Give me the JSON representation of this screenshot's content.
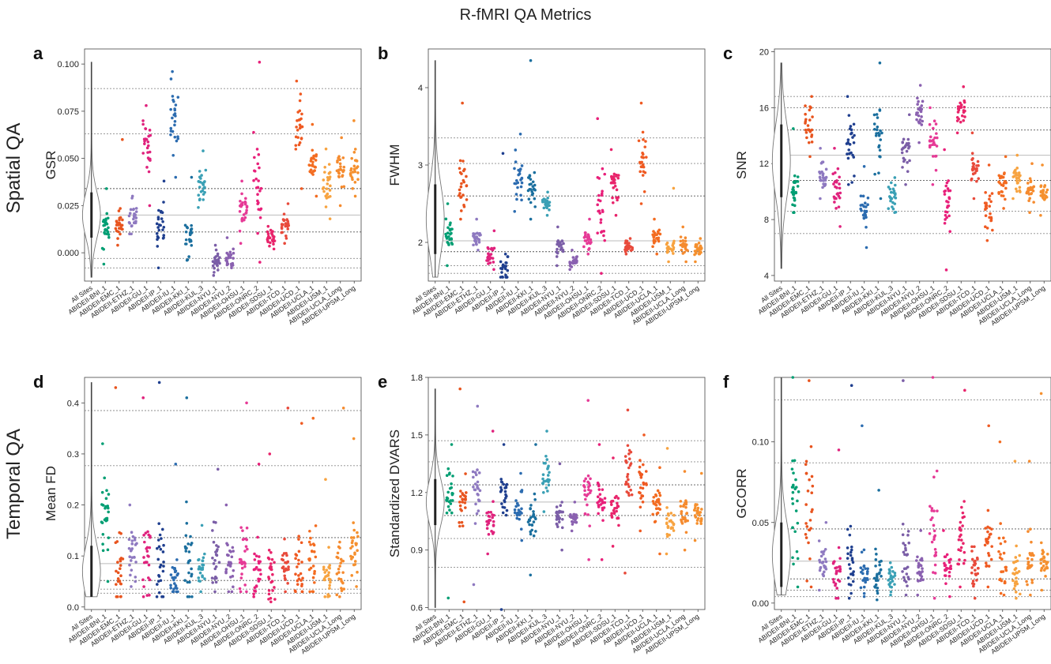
{
  "figure_title": "R-fMRI QA Metrics",
  "row_labels": [
    "Spatial QA",
    "Temporal QA"
  ],
  "categories": [
    "All Sites",
    "ABIDEII-BNI_1",
    "ABIDEII-EMC_1",
    "ABIDEII-ETHZ_1",
    "ABIDEII-GU_1",
    "ABIDEII-IP_1",
    "ABIDEII-IU_1",
    "ABIDEII-KKI_1",
    "ABIDEII-KUL_3",
    "ABIDEII-NYU_1",
    "ABIDEII-NYU_2",
    "ABIDEII-OHSU_1",
    "ABIDEII-ONRC_2",
    "ABIDEII-SDSU_1",
    "ABIDEII-TCD_1",
    "ABIDEII-UCD_1",
    "ABIDEII-UCLA_1",
    "ABIDEII-USM_1",
    "ABIDEII-UCLA_Long",
    "ABIDEII-UPSM_Long"
  ],
  "colors": [
    "#7f7f7f",
    "#009e73",
    "#e8541e",
    "#8e79c0",
    "#e0227d",
    "#1f3f8f",
    "#2c6cb0",
    "#1b6f9e",
    "#3aa0b5",
    "#7b5ea7",
    "#8a61b0",
    "#e63a96",
    "#e8207a",
    "#e8246b",
    "#e84a3b",
    "#ef5a22",
    "#f36c21",
    "#f7a340",
    "#f58b2f",
    "#f5902e"
  ],
  "chart_data": [
    {
      "type": "scatter",
      "panel": "a",
      "ylabel": "GSR",
      "ylim": [
        -0.015,
        0.108
      ],
      "yticks": [
        "0.000",
        "0.025",
        "0.050",
        "0.075",
        "0.100"
      ],
      "series": [
        {
          "center": 0.02,
          "spread": 0.012,
          "min": -0.013,
          "max": 0.101
        },
        {
          "center": 0.013,
          "spread": 0.009,
          "min": -0.006,
          "max": 0.034
        },
        {
          "center": 0.014,
          "spread": 0.006,
          "min": 0.004,
          "max": 0.06
        },
        {
          "center": 0.02,
          "spread": 0.007,
          "min": 0.01,
          "max": 0.03
        },
        {
          "center": 0.055,
          "spread": 0.012,
          "min": 0.025,
          "max": 0.078
        },
        {
          "center": 0.016,
          "spread": 0.01,
          "min": -0.008,
          "max": 0.038
        },
        {
          "center": 0.07,
          "spread": 0.015,
          "min": 0.04,
          "max": 0.096
        },
        {
          "center": 0.01,
          "spread": 0.008,
          "min": -0.004,
          "max": 0.04
        },
        {
          "center": 0.036,
          "spread": 0.007,
          "min": 0.024,
          "max": 0.054
        },
        {
          "center": -0.005,
          "spread": 0.004,
          "min": -0.012,
          "max": 0.004
        },
        {
          "center": -0.003,
          "spread": 0.004,
          "min": -0.008,
          "max": 0.008
        },
        {
          "center": 0.022,
          "spread": 0.01,
          "min": 0.005,
          "max": 0.038
        },
        {
          "center": 0.04,
          "spread": 0.022,
          "min": -0.005,
          "max": 0.101
        },
        {
          "center": 0.007,
          "spread": 0.004,
          "min": 0.002,
          "max": 0.014
        },
        {
          "center": 0.014,
          "spread": 0.005,
          "min": 0.005,
          "max": 0.026
        },
        {
          "center": 0.065,
          "spread": 0.013,
          "min": 0.034,
          "max": 0.091
        },
        {
          "center": 0.046,
          "spread": 0.007,
          "min": 0.03,
          "max": 0.068
        },
        {
          "center": 0.036,
          "spread": 0.009,
          "min": 0.018,
          "max": 0.055
        },
        {
          "center": 0.044,
          "spread": 0.008,
          "min": 0.025,
          "max": 0.061
        },
        {
          "center": 0.045,
          "spread": 0.008,
          "min": 0.03,
          "max": 0.07
        }
      ],
      "hlines": [
        0.087,
        0.063,
        0.034,
        0.02,
        0.011,
        -0.003,
        -0.008
      ]
    },
    {
      "type": "scatter",
      "panel": "b",
      "ylabel": "FWHM",
      "ylim": [
        1.5,
        4.5
      ],
      "yticks": [
        "2",
        "3",
        "4"
      ],
      "series": [
        {
          "center": 2.3,
          "spread": 0.45,
          "min": 1.55,
          "max": 4.35
        },
        {
          "center": 2.1,
          "spread": 0.18,
          "min": 1.7,
          "max": 2.5
        },
        {
          "center": 2.7,
          "spread": 0.25,
          "min": 2.3,
          "max": 3.8
        },
        {
          "center": 2.05,
          "spread": 0.1,
          "min": 1.9,
          "max": 2.3
        },
        {
          "center": 1.85,
          "spread": 0.12,
          "min": 1.65,
          "max": 2.15
        },
        {
          "center": 1.65,
          "spread": 0.15,
          "min": 1.55,
          "max": 3.15
        },
        {
          "center": 2.85,
          "spread": 0.22,
          "min": 2.4,
          "max": 3.4
        },
        {
          "center": 2.75,
          "spread": 0.2,
          "min": 2.3,
          "max": 4.35
        },
        {
          "center": 2.5,
          "spread": 0.08,
          "min": 2.35,
          "max": 2.65
        },
        {
          "center": 1.95,
          "spread": 0.12,
          "min": 1.7,
          "max": 2.2
        },
        {
          "center": 1.75,
          "spread": 0.06,
          "min": 1.65,
          "max": 1.9
        },
        {
          "center": 2.05,
          "spread": 0.1,
          "min": 1.85,
          "max": 2.3
        },
        {
          "center": 2.4,
          "spread": 0.45,
          "min": 1.6,
          "max": 3.6
        },
        {
          "center": 2.75,
          "spread": 0.18,
          "min": 2.35,
          "max": 3.2
        },
        {
          "center": 1.95,
          "spread": 0.06,
          "min": 1.85,
          "max": 2.05
        },
        {
          "center": 3.05,
          "spread": 0.3,
          "min": 2.5,
          "max": 3.8
        },
        {
          "center": 2.05,
          "spread": 0.1,
          "min": 1.85,
          "max": 2.3
        },
        {
          "center": 1.95,
          "spread": 0.1,
          "min": 1.75,
          "max": 2.7
        },
        {
          "center": 1.95,
          "spread": 0.1,
          "min": 1.75,
          "max": 2.2
        },
        {
          "center": 1.9,
          "spread": 0.08,
          "min": 1.75,
          "max": 2.05
        }
      ],
      "hlines": [
        3.35,
        3.02,
        2.6,
        2.02,
        1.88,
        1.7,
        1.6
      ]
    },
    {
      "type": "scatter",
      "panel": "c",
      "ylabel": "SNR",
      "ylim": [
        3.6,
        20.2
      ],
      "yticks": [
        "4",
        "8",
        "12",
        "16",
        "20"
      ],
      "series": [
        {
          "center": 12.2,
          "spread": 2.6,
          "min": 4.5,
          "max": 19.2
        },
        {
          "center": 10.4,
          "spread": 1.1,
          "min": 8.5,
          "max": 14.5
        },
        {
          "center": 14.8,
          "spread": 1.0,
          "min": 12.5,
          "max": 16.8
        },
        {
          "center": 11.2,
          "spread": 0.8,
          "min": 9.5,
          "max": 13.1
        },
        {
          "center": 10.2,
          "spread": 1.3,
          "min": 7.5,
          "max": 13.1
        },
        {
          "center": 13.5,
          "spread": 1.7,
          "min": 10.5,
          "max": 16.8
        },
        {
          "center": 8.5,
          "spread": 1.3,
          "min": 6.0,
          "max": 11.8
        },
        {
          "center": 13.8,
          "spread": 2.0,
          "min": 9.5,
          "max": 19.2
        },
        {
          "center": 9.6,
          "spread": 0.7,
          "min": 8.5,
          "max": 11.0
        },
        {
          "center": 13.0,
          "spread": 1.2,
          "min": 10.5,
          "max": 15.5
        },
        {
          "center": 15.5,
          "spread": 1.0,
          "min": 13.5,
          "max": 17.6
        },
        {
          "center": 13.5,
          "spread": 1.5,
          "min": 10.5,
          "max": 16.0
        },
        {
          "center": 9.5,
          "spread": 2.0,
          "min": 4.4,
          "max": 13.0
        },
        {
          "center": 15.8,
          "spread": 0.7,
          "min": 14.2,
          "max": 17.5
        },
        {
          "center": 11.6,
          "spread": 1.0,
          "min": 9.5,
          "max": 14.2
        },
        {
          "center": 8.5,
          "spread": 1.3,
          "min": 6.5,
          "max": 11.9
        },
        {
          "center": 10.6,
          "spread": 0.9,
          "min": 8.8,
          "max": 12.5
        },
        {
          "center": 10.9,
          "spread": 0.8,
          "min": 9.5,
          "max": 12.6
        },
        {
          "center": 10.1,
          "spread": 0.7,
          "min": 8.5,
          "max": 12.0
        },
        {
          "center": 9.9,
          "spread": 0.7,
          "min": 8.3,
          "max": 11.9
        }
      ],
      "hlines": [
        16.8,
        16.0,
        14.4,
        12.6,
        10.8,
        8.6,
        7.0
      ]
    },
    {
      "type": "scatter",
      "panel": "d",
      "ylabel": "Mean FD",
      "ylim": [
        -0.005,
        0.45
      ],
      "yticks": [
        "0.0",
        "0.1",
        "0.2",
        "0.3",
        "0.4"
      ],
      "series": [
        {
          "center": 0.07,
          "spread": 0.05,
          "min": 0.02,
          "max": 0.44
        },
        {
          "center": 0.17,
          "spread": 0.07,
          "min": 0.05,
          "max": 0.32
        },
        {
          "center": 0.09,
          "spread": 0.08,
          "min": 0.02,
          "max": 0.43
        },
        {
          "center": 0.11,
          "spread": 0.05,
          "min": 0.04,
          "max": 0.2
        },
        {
          "center": 0.09,
          "spread": 0.07,
          "min": 0.02,
          "max": 0.41
        },
        {
          "center": 0.08,
          "spread": 0.07,
          "min": 0.02,
          "max": 0.44
        },
        {
          "center": 0.06,
          "spread": 0.03,
          "min": 0.03,
          "max": 0.28
        },
        {
          "center": 0.1,
          "spread": 0.08,
          "min": 0.02,
          "max": 0.41
        },
        {
          "center": 0.07,
          "spread": 0.03,
          "min": 0.03,
          "max": 0.16
        },
        {
          "center": 0.1,
          "spread": 0.06,
          "min": 0.03,
          "max": 0.27
        },
        {
          "center": 0.09,
          "spread": 0.04,
          "min": 0.03,
          "max": 0.2
        },
        {
          "center": 0.1,
          "spread": 0.07,
          "min": 0.03,
          "max": 0.4
        },
        {
          "center": 0.07,
          "spread": 0.05,
          "min": 0.02,
          "max": 0.28
        },
        {
          "center": 0.06,
          "spread": 0.04,
          "min": 0.01,
          "max": 0.3
        },
        {
          "center": 0.08,
          "spread": 0.04,
          "min": 0.03,
          "max": 0.39
        },
        {
          "center": 0.08,
          "spread": 0.05,
          "min": 0.03,
          "max": 0.36
        },
        {
          "center": 0.09,
          "spread": 0.06,
          "min": 0.03,
          "max": 0.37
        },
        {
          "center": 0.06,
          "spread": 0.04,
          "min": 0.02,
          "max": 0.25
        },
        {
          "center": 0.07,
          "spread": 0.05,
          "min": 0.02,
          "max": 0.39
        },
        {
          "center": 0.11,
          "spread": 0.05,
          "min": 0.04,
          "max": 0.33
        }
      ],
      "hlines": [
        0.385,
        0.277,
        0.136,
        0.085,
        0.052,
        0.035,
        0.027
      ]
    },
    {
      "type": "scatter",
      "panel": "e",
      "ylabel": "Standardized DVARS",
      "ylim": [
        0.59,
        1.8
      ],
      "yticks": [
        "0.6",
        "0.9",
        "1.2",
        "1.5",
        "1.8"
      ],
      "series": [
        {
          "center": 1.15,
          "spread": 0.12,
          "min": 0.6,
          "max": 1.74
        },
        {
          "center": 1.2,
          "spread": 0.09,
          "min": 0.65,
          "max": 1.45
        },
        {
          "center": 1.15,
          "spread": 0.12,
          "min": 0.63,
          "max": 1.74
        },
        {
          "center": 1.2,
          "spread": 0.11,
          "min": 0.72,
          "max": 1.65
        },
        {
          "center": 1.05,
          "spread": 0.07,
          "min": 0.88,
          "max": 1.52
        },
        {
          "center": 1.2,
          "spread": 0.1,
          "min": 0.59,
          "max": 1.45
        },
        {
          "center": 1.12,
          "spread": 0.07,
          "min": 0.95,
          "max": 1.3
        },
        {
          "center": 1.05,
          "spread": 0.1,
          "min": 0.77,
          "max": 1.45
        },
        {
          "center": 1.3,
          "spread": 0.08,
          "min": 1.1,
          "max": 1.52
        },
        {
          "center": 1.08,
          "spread": 0.06,
          "min": 0.9,
          "max": 1.35
        },
        {
          "center": 1.07,
          "spread": 0.03,
          "min": 1.0,
          "max": 1.15
        },
        {
          "center": 1.2,
          "spread": 0.12,
          "min": 0.85,
          "max": 1.68
        },
        {
          "center": 1.15,
          "spread": 0.1,
          "min": 0.85,
          "max": 1.45
        },
        {
          "center": 1.12,
          "spread": 0.07,
          "min": 0.92,
          "max": 1.38
        },
        {
          "center": 1.3,
          "spread": 0.12,
          "min": 0.78,
          "max": 1.63
        },
        {
          "center": 1.25,
          "spread": 0.1,
          "min": 1.0,
          "max": 1.5
        },
        {
          "center": 1.13,
          "spread": 0.08,
          "min": 0.88,
          "max": 1.33
        },
        {
          "center": 1.05,
          "spread": 0.07,
          "min": 0.88,
          "max": 1.43
        },
        {
          "center": 1.1,
          "spread": 0.08,
          "min": 0.9,
          "max": 1.31
        },
        {
          "center": 1.1,
          "spread": 0.07,
          "min": 0.95,
          "max": 1.3
        }
      ],
      "hlines": [
        1.47,
        1.36,
        1.24,
        1.15,
        1.08,
        0.96,
        0.81
      ]
    },
    {
      "type": "scatter",
      "panel": "f",
      "ylabel": "GCORR",
      "ylim": [
        -0.004,
        0.14
      ],
      "yticks": [
        "0.00",
        "0.05",
        "0.10"
      ],
      "series": [
        {
          "center": 0.03,
          "spread": 0.02,
          "min": 0.005,
          "max": 0.14
        },
        {
          "center": 0.06,
          "spread": 0.03,
          "min": 0.01,
          "max": 0.14
        },
        {
          "center": 0.06,
          "spread": 0.03,
          "min": 0.01,
          "max": 0.138
        },
        {
          "center": 0.025,
          "spread": 0.01,
          "min": 0.008,
          "max": 0.05
        },
        {
          "center": 0.02,
          "spread": 0.015,
          "min": 0.003,
          "max": 0.095
        },
        {
          "center": 0.025,
          "spread": 0.015,
          "min": 0.003,
          "max": 0.135
        },
        {
          "center": 0.022,
          "spread": 0.01,
          "min": 0.004,
          "max": 0.11
        },
        {
          "center": 0.02,
          "spread": 0.012,
          "min": 0.002,
          "max": 0.07
        },
        {
          "center": 0.015,
          "spread": 0.007,
          "min": 0.005,
          "max": 0.025
        },
        {
          "center": 0.03,
          "spread": 0.02,
          "min": 0.005,
          "max": 0.138
        },
        {
          "center": 0.02,
          "spread": 0.01,
          "min": 0.005,
          "max": 0.045
        },
        {
          "center": 0.04,
          "spread": 0.03,
          "min": 0.003,
          "max": 0.14
        },
        {
          "center": 0.02,
          "spread": 0.01,
          "min": 0.004,
          "max": 0.045
        },
        {
          "center": 0.045,
          "spread": 0.025,
          "min": 0.01,
          "max": 0.132
        },
        {
          "center": 0.02,
          "spread": 0.01,
          "min": 0.003,
          "max": 0.035
        },
        {
          "center": 0.035,
          "spread": 0.02,
          "min": 0.01,
          "max": 0.11
        },
        {
          "center": 0.025,
          "spread": 0.015,
          "min": 0.005,
          "max": 0.1
        },
        {
          "center": 0.02,
          "spread": 0.01,
          "min": 0.003,
          "max": 0.088
        },
        {
          "center": 0.025,
          "spread": 0.015,
          "min": 0.005,
          "max": 0.088
        },
        {
          "center": 0.025,
          "spread": 0.01,
          "min": 0.008,
          "max": 0.13
        }
      ],
      "hlines": [
        0.126,
        0.087,
        0.046,
        0.026,
        0.015,
        0.008,
        0.004
      ]
    }
  ]
}
